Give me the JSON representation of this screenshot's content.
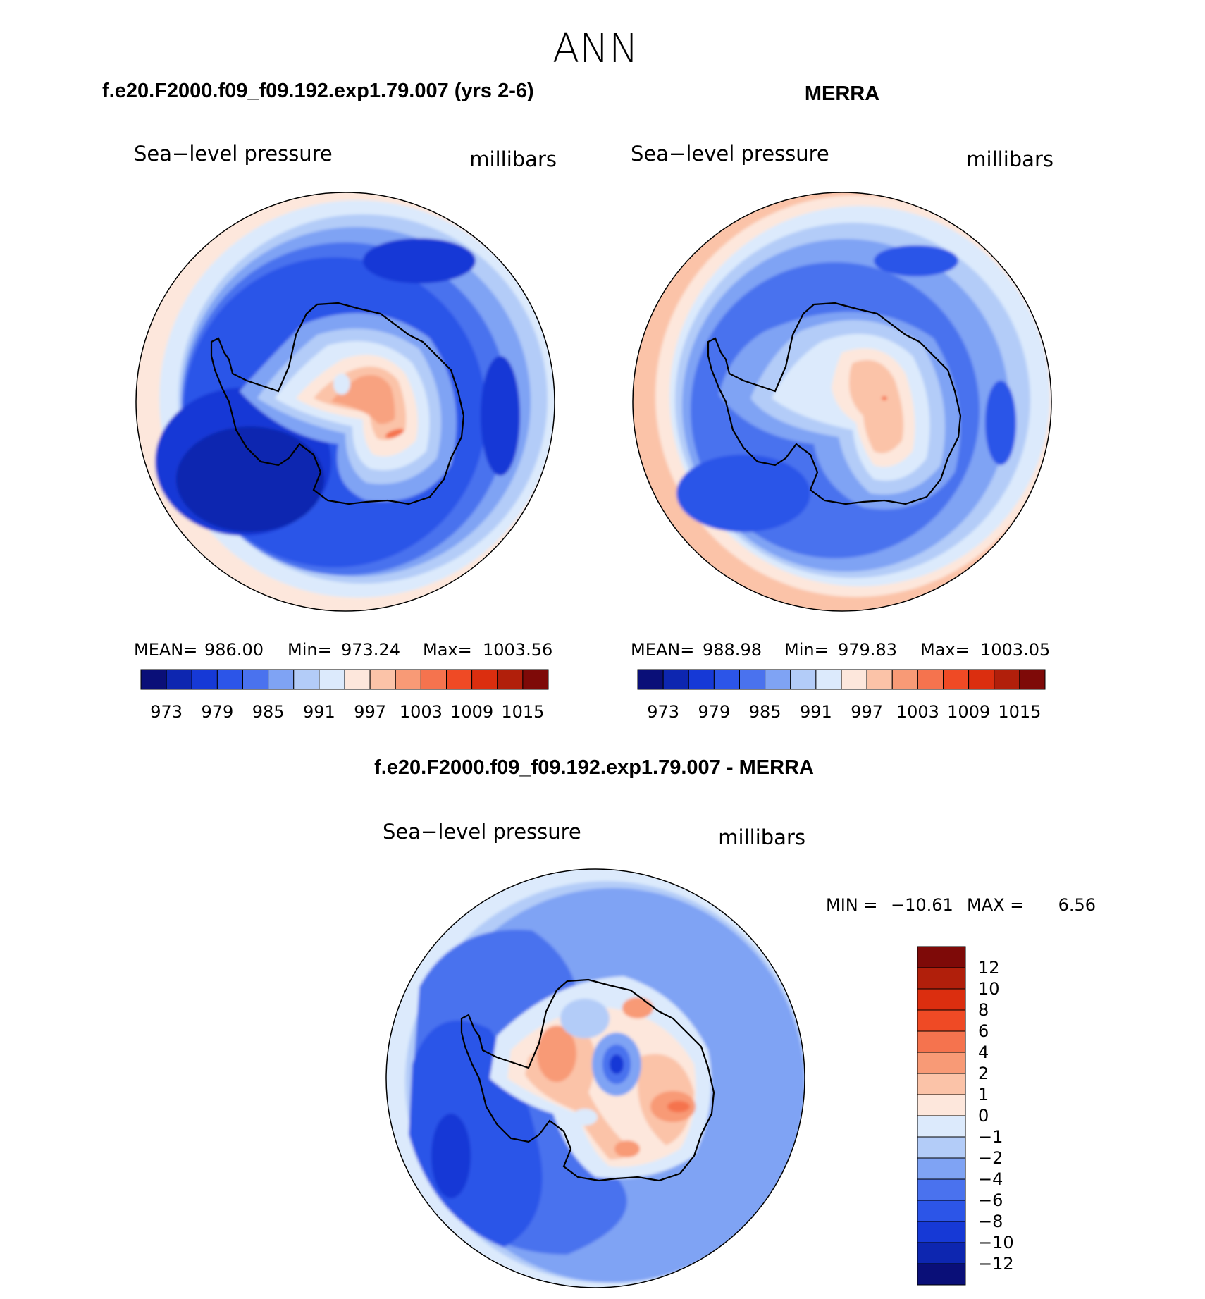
{
  "page_title": "ANN",
  "colors": {
    "abs_scale": [
      "#0a0f78",
      "#0d26b0",
      "#1639d6",
      "#2c55e8",
      "#4a72ee",
      "#7fa3f4",
      "#b3ccf8",
      "#dceafc",
      "#fde7dc",
      "#fbc3a8",
      "#f89a76",
      "#f5734e",
      "#ef4a25",
      "#db2e0f",
      "#b11f0b",
      "#7e0a08"
    ],
    "diff_scale": [
      "#0a0f78",
      "#0d26b0",
      "#1639d6",
      "#2c55e8",
      "#4a72ee",
      "#7fa3f4",
      "#b3ccf8",
      "#dceafc",
      "#fde7dc",
      "#fbc3a8",
      "#f89a76",
      "#f5734e",
      "#ef4a25",
      "#db2e0f",
      "#b11f0b",
      "#7e0a08"
    ]
  },
  "chart_data": [
    {
      "type": "heatmap",
      "panel": "top-left",
      "heading": "f.e20.F2000.f09_f09.192.exp1.79.007 (yrs 2-6)",
      "title": "Sea−level pressure",
      "units": "millibars",
      "projection": "south polar stereographic",
      "stats": {
        "mean_label": "MEAN=",
        "mean": "986.00",
        "min_label": "Min=",
        "min": "973.24",
        "max_label": "Max=",
        "max": "1003.56"
      },
      "colorbar_levels": [
        973,
        979,
        985,
        991,
        997,
        1003,
        1009,
        1015
      ],
      "colorbar_tick_labels": [
        "973",
        "979",
        "985",
        "991",
        "997",
        "1003",
        "1009",
        "1015"
      ]
    },
    {
      "type": "heatmap",
      "panel": "top-right",
      "heading": "MERRA",
      "title": "Sea−level pressure",
      "units": "millibars",
      "projection": "south polar stereographic",
      "stats": {
        "mean_label": "MEAN=",
        "mean": "988.98",
        "min_label": "Min=",
        "min": "979.83",
        "max_label": "Max=",
        "max": "1003.05"
      },
      "colorbar_levels": [
        973,
        979,
        985,
        991,
        997,
        1003,
        1009,
        1015
      ],
      "colorbar_tick_labels": [
        "973",
        "979",
        "985",
        "991",
        "997",
        "1003",
        "1009",
        "1015"
      ]
    },
    {
      "type": "heatmap",
      "panel": "bottom",
      "heading": "f.e20.F2000.f09_f09.192.exp1.79.007 - MERRA",
      "title": "Sea−level pressure",
      "units": "millibars",
      "projection": "south polar stereographic",
      "stats": {
        "min_label": "MIN =",
        "min": "−10.61",
        "max_label": "MAX =",
        "max": "6.56"
      },
      "colorbar_levels": [
        12,
        10,
        8,
        6,
        4,
        2,
        1,
        0,
        -1,
        -2,
        -4,
        -6,
        -8,
        -10,
        -12
      ],
      "colorbar_tick_labels": [
        "12",
        "10",
        "8",
        "6",
        "4",
        "2",
        "1",
        "0",
        "−1",
        "−2",
        "−4",
        "−6",
        "−8",
        "−10",
        "−12"
      ]
    }
  ]
}
